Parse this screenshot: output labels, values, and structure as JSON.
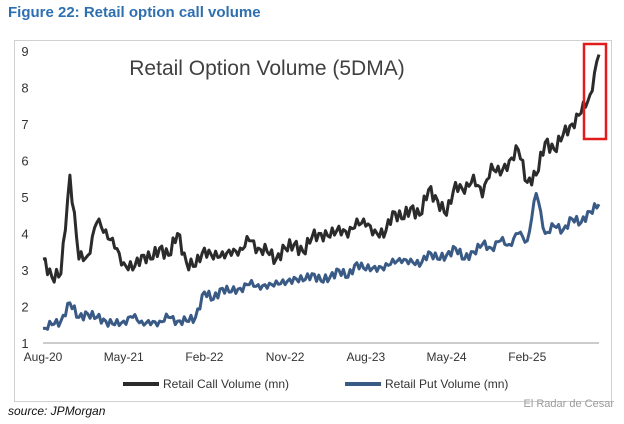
{
  "figure_title": "Figure 22: Retail option call volume",
  "source_text": "source: JPMorgan",
  "watermark": "El Radar de Cesar",
  "chart_data": {
    "type": "line",
    "title": "Retail Option Volume (5DMA)",
    "xlabel": "",
    "ylabel": "",
    "ylim": [
      1,
      9
    ],
    "yticks": [
      "1",
      "2",
      "3",
      "4",
      "5",
      "6",
      "7",
      "8",
      "9"
    ],
    "xticks": [
      "Aug-20",
      "May-21",
      "Feb-22",
      "Nov-22",
      "Aug-23",
      "May-24",
      "Feb-25"
    ],
    "x_index_range": [
      0,
      62
    ],
    "legend_position": "bottom",
    "highlight": "latest spike boxed in red",
    "colors": {
      "call": "#2b2b2b",
      "put": "#3a5a86",
      "highlight": "#e21b1b"
    },
    "x": [
      "Aug-20",
      "Sep-20",
      "Oct-20",
      "Nov-20",
      "Dec-20",
      "Jan-21",
      "Feb-21",
      "Mar-21",
      "Apr-21",
      "May-21",
      "Jun-21",
      "Jul-21",
      "Aug-21",
      "Sep-21",
      "Oct-21",
      "Nov-21",
      "Dec-21",
      "Jan-22",
      "Feb-22",
      "Mar-22",
      "Apr-22",
      "May-22",
      "Jun-22",
      "Jul-22",
      "Aug-22",
      "Sep-22",
      "Oct-22",
      "Nov-22",
      "Dec-22",
      "Jan-23",
      "Feb-23",
      "Mar-23",
      "Apr-23",
      "May-23",
      "Jun-23",
      "Jul-23",
      "Aug-23",
      "Sep-23",
      "Oct-23",
      "Nov-23",
      "Dec-23",
      "Jan-24",
      "Feb-24",
      "Mar-24",
      "Apr-24",
      "May-24",
      "Jun-24",
      "Jul-24",
      "Aug-24",
      "Sep-24",
      "Oct-24",
      "Nov-24",
      "Dec-24",
      "Jan-25",
      "Feb-25",
      "Mar-25",
      "Apr-25",
      "May-25",
      "Jun-25",
      "Jul-25",
      "Aug-25",
      "Sep-25",
      "Oct-25"
    ],
    "series": [
      {
        "name": "Retail Call Volume (mn)",
        "values": [
          3.3,
          2.8,
          2.9,
          5.6,
          3.3,
          3.4,
          4.3,
          4.1,
          3.6,
          3.2,
          3.0,
          3.4,
          3.3,
          3.6,
          3.4,
          4.0,
          3.2,
          3.1,
          3.6,
          3.3,
          3.5,
          3.4,
          3.6,
          3.8,
          3.6,
          3.5,
          3.3,
          3.6,
          3.7,
          3.5,
          3.9,
          4.0,
          3.9,
          4.2,
          3.9,
          4.4,
          4.2,
          4.1,
          3.9,
          4.6,
          4.4,
          4.7,
          4.5,
          5.2,
          4.9,
          4.5,
          5.4,
          5.1,
          5.6,
          5.0,
          5.9,
          5.6,
          6.0,
          6.3,
          5.4,
          5.6,
          6.5,
          6.3,
          6.7,
          7.0,
          7.3,
          7.8,
          8.9
        ]
      },
      {
        "name": "Retail Put Volume (mn)",
        "values": [
          1.4,
          1.5,
          1.6,
          2.1,
          1.7,
          1.8,
          1.7,
          1.6,
          1.5,
          1.6,
          1.7,
          1.6,
          1.5,
          1.6,
          1.7,
          1.6,
          1.6,
          1.7,
          2.4,
          2.2,
          2.5,
          2.4,
          2.5,
          2.6,
          2.6,
          2.5,
          2.7,
          2.6,
          2.8,
          2.7,
          2.9,
          2.7,
          2.8,
          3.0,
          2.8,
          3.2,
          3.0,
          3.1,
          3.0,
          3.3,
          3.2,
          3.3,
          3.1,
          3.5,
          3.3,
          3.4,
          3.6,
          3.3,
          3.5,
          3.7,
          3.6,
          3.8,
          3.7,
          4.0,
          3.8,
          5.1,
          4.0,
          4.2,
          4.1,
          4.4,
          4.3,
          4.6,
          4.8
        ]
      }
    ]
  }
}
